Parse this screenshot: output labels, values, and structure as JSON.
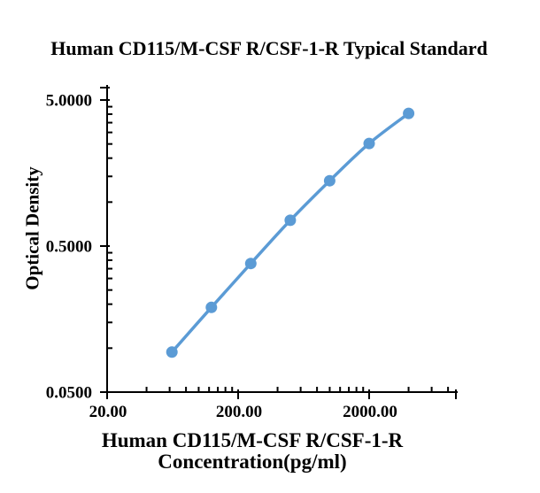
{
  "chart_data": {
    "type": "line",
    "scale": "log-log",
    "title": "Human CD115/M-CSF R/CSF-1-R Typical Standard",
    "ylabel": "Optical Density",
    "xlabel_line1": "Human CD115/M-CSF R/CSF-1-R",
    "xlabel_line2": "Concentration(pg/ml)",
    "series": [
      {
        "name": "Typical Standard",
        "x": [
          62.5,
          125,
          250,
          500,
          1000,
          2000,
          4000
        ],
        "y": [
          0.094,
          0.19,
          0.38,
          0.75,
          1.4,
          2.52,
          4.05
        ]
      }
    ],
    "x_axis": {
      "title": "Human CD115/M-CSF R/CSF-1-R Concentration(pg/ml)",
      "scale": "log",
      "ticks": [
        20,
        200,
        2000
      ],
      "tick_labels": [
        "20.00",
        "200.00",
        "2000.00"
      ],
      "range": [
        20,
        9500
      ]
    },
    "y_axis": {
      "title": "Optical Density",
      "scale": "log",
      "ticks": [
        5.0,
        0.5,
        0.05
      ],
      "tick_labels": [
        "5.0000",
        "0.5000",
        "0.0500"
      ],
      "range": [
        0.05,
        6.2
      ]
    },
    "grid": false,
    "legend": null,
    "colors": {
      "line": "#5B9BD5",
      "marker": "#5B9BD5",
      "axis": "#000000",
      "text": "#000000",
      "background": "#FFFFFF"
    }
  }
}
